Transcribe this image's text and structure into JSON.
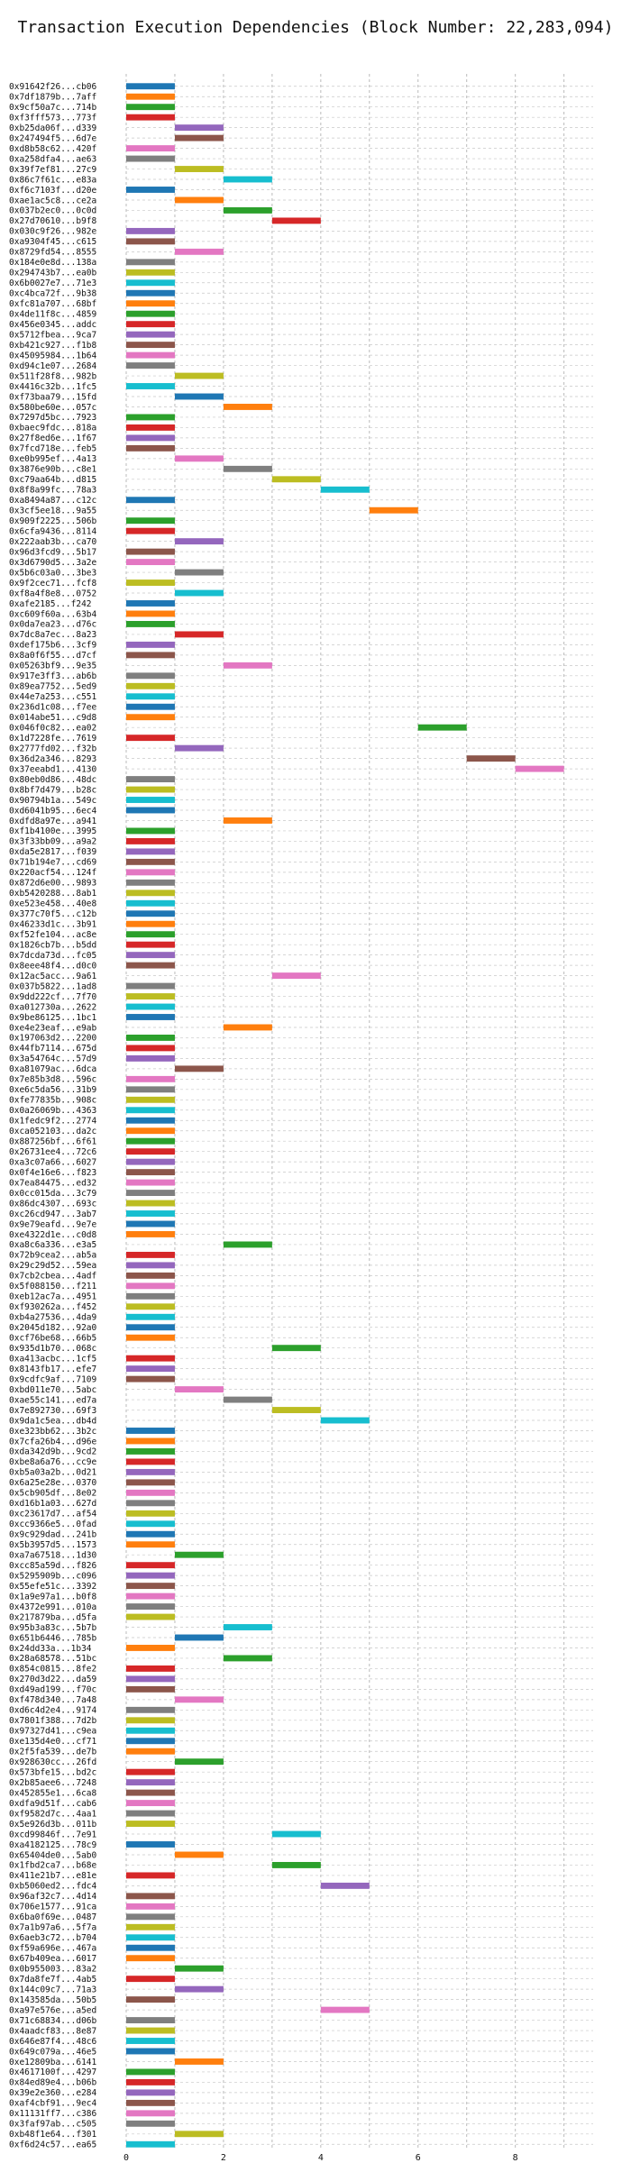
{
  "chart_data": {
    "type": "bar",
    "orientation": "horizontal",
    "title": "Transaction Execution Dependencies (Block Number: 22,283,094)",
    "xlabel": "",
    "ylabel": "",
    "xlim": [
      0,
      9.6
    ],
    "xticks": [
      "0",
      "2",
      "4",
      "6",
      "8"
    ],
    "grid": true,
    "palette": [
      "#1f77b4",
      "#ff7f0e",
      "#2ca02c",
      "#d62728",
      "#9467bd",
      "#8c564b",
      "#e377c2",
      "#7f7f7f",
      "#bcbd22",
      "#17becf"
    ],
    "transactions": [
      {
        "label": "0x91642f26...cb06",
        "start": 0
      },
      {
        "label": "0x7df1879b...7aff",
        "start": 0
      },
      {
        "label": "0x9cf50a7c...714b",
        "start": 0
      },
      {
        "label": "0xf3fff573...773f",
        "start": 0
      },
      {
        "label": "0xb25da06f...d339",
        "start": 1
      },
      {
        "label": "0x247494f5...6d7e",
        "start": 1
      },
      {
        "label": "0xd8b58c62...420f",
        "start": 0
      },
      {
        "label": "0xa258dfa4...ae63",
        "start": 0
      },
      {
        "label": "0x39f7ef81...27c9",
        "start": 1
      },
      {
        "label": "0x86c7f61c...e83a",
        "start": 2
      },
      {
        "label": "0xf6c7103f...d20e",
        "start": 0
      },
      {
        "label": "0xae1ac5c8...ce2a",
        "start": 1
      },
      {
        "label": "0x037b2ec0...0c0d",
        "start": 2
      },
      {
        "label": "0x27d70610...b9f8",
        "start": 3
      },
      {
        "label": "0x030c9f26...982e",
        "start": 0
      },
      {
        "label": "0xa9304f45...c615",
        "start": 0
      },
      {
        "label": "0x8729fd54...8555",
        "start": 1
      },
      {
        "label": "0x184e0e8d...138a",
        "start": 0
      },
      {
        "label": "0x294743b7...ea0b",
        "start": 0
      },
      {
        "label": "0x6b0027e7...71e3",
        "start": 0
      },
      {
        "label": "0xc4bca72f...9b38",
        "start": 0
      },
      {
        "label": "0xfc81a707...68bf",
        "start": 0
      },
      {
        "label": "0x4de11f8c...4859",
        "start": 0
      },
      {
        "label": "0x456e0345...addc",
        "start": 0
      },
      {
        "label": "0x5712fbea...9ca7",
        "start": 0
      },
      {
        "label": "0xb421c927...f1b8",
        "start": 0
      },
      {
        "label": "0x45095984...1b64",
        "start": 0
      },
      {
        "label": "0xd94c1e07...2684",
        "start": 0
      },
      {
        "label": "0x511f28f8...982b",
        "start": 1
      },
      {
        "label": "0x4416c32b...1fc5",
        "start": 0
      },
      {
        "label": "0xf73baa79...15fd",
        "start": 1
      },
      {
        "label": "0x580be60e...057c",
        "start": 2
      },
      {
        "label": "0x7297d5bc...7923",
        "start": 0
      },
      {
        "label": "0xbaec9fdc...818a",
        "start": 0
      },
      {
        "label": "0x27f8ed6e...1f67",
        "start": 0
      },
      {
        "label": "0x7fcd718e...feb5",
        "start": 0
      },
      {
        "label": "0xe0b995ef...4a13",
        "start": 1
      },
      {
        "label": "0x3876e90b...c8e1",
        "start": 2
      },
      {
        "label": "0xc79aa64b...d815",
        "start": 3
      },
      {
        "label": "0x8f8a99fc...78a3",
        "start": 4
      },
      {
        "label": "0xa8494a87...c12c",
        "start": 0
      },
      {
        "label": "0x3cf5ee18...9a55",
        "start": 5
      },
      {
        "label": "0x909f2225...506b",
        "start": 0
      },
      {
        "label": "0x6cfa9436...8114",
        "start": 0
      },
      {
        "label": "0x222aab3b...ca70",
        "start": 1
      },
      {
        "label": "0x96d3fcd9...5b17",
        "start": 0
      },
      {
        "label": "0x3d6790d5...3a2e",
        "start": 0
      },
      {
        "label": "0x5b6c03a0...3be3",
        "start": 1
      },
      {
        "label": "0x9f2cec71...fcf8",
        "start": 0
      },
      {
        "label": "0xf8a4f8e8...0752",
        "start": 1
      },
      {
        "label": "0xafe2185...f242",
        "start": 0
      },
      {
        "label": "0xc609f60a...63b4",
        "start": 0
      },
      {
        "label": "0x0da7ea23...d76c",
        "start": 0
      },
      {
        "label": "0x7dc8a7ec...8a23",
        "start": 1
      },
      {
        "label": "0xdef175b6...3cf9",
        "start": 0
      },
      {
        "label": "0x8a0f6f55...d7cf",
        "start": 0
      },
      {
        "label": "0x05263bf9...9e35",
        "start": 2
      },
      {
        "label": "0x917e3ff3...ab6b",
        "start": 0
      },
      {
        "label": "0x89ea7752...5ed9",
        "start": 0
      },
      {
        "label": "0x44e7a253...c551",
        "start": 0
      },
      {
        "label": "0x236d1c08...f7ee",
        "start": 0
      },
      {
        "label": "0x014abe51...c9d8",
        "start": 0
      },
      {
        "label": "0x046f0c82...ea02",
        "start": 6
      },
      {
        "label": "0x1d7228fe...7619",
        "start": 0
      },
      {
        "label": "0x2777fd02...f32b",
        "start": 1
      },
      {
        "label": "0x36d2a346...8293",
        "start": 7
      },
      {
        "label": "0x37eeabd1...4130",
        "start": 8
      },
      {
        "label": "0x80eb0d86...48dc",
        "start": 0
      },
      {
        "label": "0x8bf7d479...b28c",
        "start": 0
      },
      {
        "label": "0x90794b1a...549c",
        "start": 0
      },
      {
        "label": "0xd6041b95...6ec4",
        "start": 0
      },
      {
        "label": "0xdfd8a97e...a941",
        "start": 2
      },
      {
        "label": "0xf1b4100e...3995",
        "start": 0
      },
      {
        "label": "0x3f33bb09...a9a2",
        "start": 0
      },
      {
        "label": "0xda5e2817...f039",
        "start": 0
      },
      {
        "label": "0x71b194e7...cd69",
        "start": 0
      },
      {
        "label": "0x220acf54...124f",
        "start": 0
      },
      {
        "label": "0x872d6e00...9893",
        "start": 0
      },
      {
        "label": "0xb5420288...8ab1",
        "start": 0
      },
      {
        "label": "0xe523e458...40e8",
        "start": 0
      },
      {
        "label": "0x377c70f5...c12b",
        "start": 0
      },
      {
        "label": "0x46233d1c...3b91",
        "start": 0
      },
      {
        "label": "0xf52fe104...ac8e",
        "start": 0
      },
      {
        "label": "0x1826cb7b...b5dd",
        "start": 0
      },
      {
        "label": "0x7dcda73d...fc05",
        "start": 0
      },
      {
        "label": "0x8eee48f4...d0c0",
        "start": 0
      },
      {
        "label": "0x12ac5acc...9a61",
        "start": 3
      },
      {
        "label": "0x037b5822...1ad8",
        "start": 0
      },
      {
        "label": "0x9dd222cf...7f70",
        "start": 0
      },
      {
        "label": "0xa012730a...2622",
        "start": 0
      },
      {
        "label": "0x9be86125...1bc1",
        "start": 0
      },
      {
        "label": "0xe4e23eaf...e9ab",
        "start": 2
      },
      {
        "label": "0x197063d2...2200",
        "start": 0
      },
      {
        "label": "0x44fb7114...675d",
        "start": 0
      },
      {
        "label": "0x3a54764c...57d9",
        "start": 0
      },
      {
        "label": "0xa81079ac...6dca",
        "start": 1
      },
      {
        "label": "0x7e85b3d8...596c",
        "start": 0
      },
      {
        "label": "0xe6c5da56...31b9",
        "start": 0
      },
      {
        "label": "0xfe77835b...908c",
        "start": 0
      },
      {
        "label": "0x0a26069b...4363",
        "start": 0
      },
      {
        "label": "0x1fedc9f2...2774",
        "start": 0
      },
      {
        "label": "0xca052103...da2c",
        "start": 0
      },
      {
        "label": "0x887256bf...6f61",
        "start": 0
      },
      {
        "label": "0x26731ee4...72c6",
        "start": 0
      },
      {
        "label": "0xa3c07a66...6027",
        "start": 0
      },
      {
        "label": "0x0f4e16e6...f823",
        "start": 0
      },
      {
        "label": "0x7ea84475...ed32",
        "start": 0
      },
      {
        "label": "0x0cc015da...3c79",
        "start": 0
      },
      {
        "label": "0x86dc4307...693c",
        "start": 0
      },
      {
        "label": "0xc26cd947...3ab7",
        "start": 0
      },
      {
        "label": "0x9e79eafd...9e7e",
        "start": 0
      },
      {
        "label": "0xe4322d1e...c0d8",
        "start": 0
      },
      {
        "label": "0xa8c6a336...e3a5",
        "start": 2
      },
      {
        "label": "0x72b9cea2...ab5a",
        "start": 0
      },
      {
        "label": "0x29c29d52...59ea",
        "start": 0
      },
      {
        "label": "0x7cb2cbea...4adf",
        "start": 0
      },
      {
        "label": "0x5f088150...f211",
        "start": 0
      },
      {
        "label": "0xeb12ac7a...4951",
        "start": 0
      },
      {
        "label": "0xf930262a...f452",
        "start": 0
      },
      {
        "label": "0xb4a27536...4da9",
        "start": 0
      },
      {
        "label": "0x2045d182...92a0",
        "start": 0
      },
      {
        "label": "0xcf76be68...66b5",
        "start": 0
      },
      {
        "label": "0x935d1b70...068c",
        "start": 3
      },
      {
        "label": "0xa413acbc...1cf5",
        "start": 0
      },
      {
        "label": "0x8143fb17...efe7",
        "start": 0
      },
      {
        "label": "0x9cdfc9af...7109",
        "start": 0
      },
      {
        "label": "0xbd011e70...5abc",
        "start": 1
      },
      {
        "label": "0xae55c141...ed7a",
        "start": 2
      },
      {
        "label": "0x7e892730...69f3",
        "start": 3
      },
      {
        "label": "0x9da1c5ea...db4d",
        "start": 4
      },
      {
        "label": "0xe323bb62...3b2c",
        "start": 0
      },
      {
        "label": "0x7cfa26b4...d96e",
        "start": 0
      },
      {
        "label": "0xda342d9b...9cd2",
        "start": 0
      },
      {
        "label": "0xbe8a6a76...cc9e",
        "start": 0
      },
      {
        "label": "0xb5a03a2b...0d21",
        "start": 0
      },
      {
        "label": "0x6a25e28e...0370",
        "start": 0
      },
      {
        "label": "0x5cb905df...8e02",
        "start": 0
      },
      {
        "label": "0xd16b1a03...627d",
        "start": 0
      },
      {
        "label": "0xc23617d7...af54",
        "start": 0
      },
      {
        "label": "0xcc9366e5...0fad",
        "start": 0
      },
      {
        "label": "0x9c929dad...241b",
        "start": 0
      },
      {
        "label": "0x5b3957d5...1573",
        "start": 0
      },
      {
        "label": "0xa7a67518...1d30",
        "start": 1
      },
      {
        "label": "0xcc85a59d...f826",
        "start": 0
      },
      {
        "label": "0x5295909b...c096",
        "start": 0
      },
      {
        "label": "0x55efe51c...3392",
        "start": 0
      },
      {
        "label": "0x1a9e97a1...b0f8",
        "start": 0
      },
      {
        "label": "0x4372e991...010a",
        "start": 0
      },
      {
        "label": "0x217879ba...d5fa",
        "start": 0
      },
      {
        "label": "0x95b3a83c...5b7b",
        "start": 2
      },
      {
        "label": "0x651b6446...785b",
        "start": 1
      },
      {
        "label": "0x24dd33a...1b34",
        "start": 0
      },
      {
        "label": "0x28a68578...51bc",
        "start": 2
      },
      {
        "label": "0x854c0815...8fe2",
        "start": 0
      },
      {
        "label": "0x270d3d22...da59",
        "start": 0
      },
      {
        "label": "0xd49ad199...f70c",
        "start": 0
      },
      {
        "label": "0xf478d340...7a48",
        "start": 1
      },
      {
        "label": "0xd6c4d2e4...9174",
        "start": 0
      },
      {
        "label": "0x7801f388...7d2b",
        "start": 0
      },
      {
        "label": "0x97327d41...c9ea",
        "start": 0
      },
      {
        "label": "0xe135d4e0...cf71",
        "start": 0
      },
      {
        "label": "0x2f5fa539...de7b",
        "start": 0
      },
      {
        "label": "0x928630cc...26fd",
        "start": 1
      },
      {
        "label": "0x573bfe15...bd2c",
        "start": 0
      },
      {
        "label": "0x2b85aee6...7248",
        "start": 0
      },
      {
        "label": "0x452855e1...6ca8",
        "start": 0
      },
      {
        "label": "0xdfa9d51f...cab6",
        "start": 0
      },
      {
        "label": "0xf9582d7c...4aa1",
        "start": 0
      },
      {
        "label": "0x5e926d3b...011b",
        "start": 0
      },
      {
        "label": "0xcd99846f...7e91",
        "start": 3
      },
      {
        "label": "0xa4182125...78c9",
        "start": 0
      },
      {
        "label": "0x65404de0...5ab0",
        "start": 1
      },
      {
        "label": "0x1fbd2ca7...b68e",
        "start": 3
      },
      {
        "label": "0x411e21b7...e81e",
        "start": 0
      },
      {
        "label": "0xb5060ed2...fdc4",
        "start": 4
      },
      {
        "label": "0x96af32c7...4d14",
        "start": 0
      },
      {
        "label": "0x706e1577...91ca",
        "start": 0
      },
      {
        "label": "0x6ba0f69e...0487",
        "start": 0
      },
      {
        "label": "0x7a1b97a6...5f7a",
        "start": 0
      },
      {
        "label": "0x6aeb3c72...b704",
        "start": 0
      },
      {
        "label": "0xf59a696e...467a",
        "start": 0
      },
      {
        "label": "0x67b409ea...6017",
        "start": 0
      },
      {
        "label": "0x0b955003...83a2",
        "start": 1
      },
      {
        "label": "0x7da8fe7f...4ab5",
        "start": 0
      },
      {
        "label": "0x144c09c7...71a3",
        "start": 1
      },
      {
        "label": "0x143585da...50b5",
        "start": 0
      },
      {
        "label": "0xa97e576e...a5ed",
        "start": 4
      },
      {
        "label": "0x71c68834...d06b",
        "start": 0
      },
      {
        "label": "0x4aadcf83...8e87",
        "start": 0
      },
      {
        "label": "0x646e87f4...48c6",
        "start": 0
      },
      {
        "label": "0x649c079a...46e5",
        "start": 0
      },
      {
        "label": "0xe12809ba...6141",
        "start": 1
      },
      {
        "label": "0x4617100f...4297",
        "start": 0
      },
      {
        "label": "0x84ed89e4...b06b",
        "start": 0
      },
      {
        "label": "0x39e2e360...e284",
        "start": 0
      },
      {
        "label": "0xaf4cbf91...9ec4",
        "start": 0
      },
      {
        "label": "0x11131ff7...c386",
        "start": 0
      },
      {
        "label": "0x3faf97ab...c505",
        "start": 0
      },
      {
        "label": "0xb48f1e64...f301",
        "start": 1
      },
      {
        "label": "0xf6d24c57...ea65",
        "start": 0
      }
    ]
  }
}
